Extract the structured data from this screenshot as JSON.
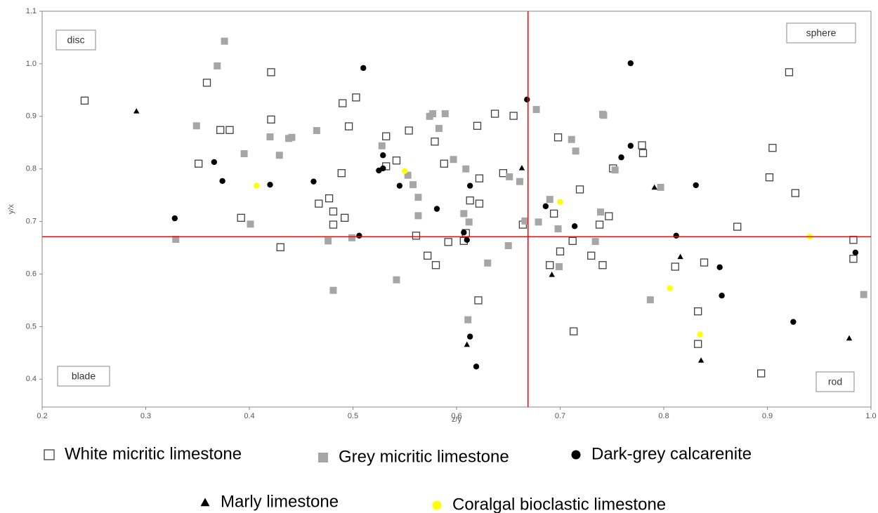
{
  "chart_data": {
    "type": "scatter",
    "x_label": "z/y",
    "y_label": "y/x",
    "xlim": [
      0.2,
      1.0
    ],
    "ylim": [
      0.347,
      1.1
    ],
    "xticks": [
      0.2,
      0.3,
      0.4,
      0.5,
      0.6,
      0.7,
      0.8,
      0.9,
      {
        "value": 1,
        "label": "1.0"
      }
    ],
    "yticks": [
      0.4,
      0.5,
      0.6,
      0.7,
      0.8,
      0.9,
      {
        "value": 1,
        "label": "1.0"
      },
      1.1
    ],
    "grid": false,
    "reference_lines": {
      "x": 0.669,
      "y": 0.671,
      "color": "#ff0000"
    },
    "quadrant_labels": [
      "disc",
      "sphere",
      "blade",
      "rod"
    ],
    "series": [
      {
        "name": "White micritic limestone",
        "color": "#404040",
        "marker": "square-open",
        "x": [
          0.241,
          0.359,
          0.351,
          0.372,
          0.381,
          0.421,
          0.421,
          0.392,
          0.43,
          0.467,
          0.477,
          0.481,
          0.481,
          0.489,
          0.49,
          0.496,
          0.492,
          0.503,
          0.532,
          0.532,
          0.542,
          0.554,
          0.561,
          0.572,
          0.579,
          0.58,
          0.588,
          0.592,
          0.607,
          0.609,
          0.613,
          0.622,
          0.622,
          0.621,
          0.62,
          0.637,
          0.645,
          0.655,
          0.664,
          0.69,
          0.698,
          0.694,
          0.7,
          0.713,
          0.719,
          0.73,
          0.738,
          0.741,
          0.747,
          0.751,
          0.779,
          0.78,
          0.811,
          0.833,
          0.833,
          0.839,
          0.871,
          0.894,
          0.902,
          0.905,
          0.921,
          0.927,
          0.983,
          0.983,
          0.712
        ],
        "y": [
          0.93,
          0.964,
          0.81,
          0.874,
          0.874,
          0.984,
          0.894,
          0.707,
          0.651,
          0.734,
          0.744,
          0.719,
          0.694,
          0.792,
          0.925,
          0.881,
          0.707,
          0.936,
          0.862,
          0.805,
          0.816,
          0.873,
          0.673,
          0.635,
          0.852,
          0.617,
          0.81,
          0.661,
          0.663,
          0.678,
          0.74,
          0.782,
          0.734,
          0.55,
          0.882,
          0.905,
          0.792,
          0.901,
          0.694,
          0.617,
          0.86,
          0.715,
          0.643,
          0.491,
          0.761,
          0.635,
          0.694,
          0.617,
          0.71,
          0.801,
          0.845,
          0.83,
          0.614,
          0.529,
          0.467,
          0.622,
          0.69,
          0.411,
          0.784,
          0.84,
          0.984,
          0.754,
          0.665,
          0.629,
          0.663
        ]
      },
      {
        "name": "Grey micritic limestone",
        "color": "#a6a6a6",
        "marker": "square",
        "x": [
          0.329,
          0.349,
          0.369,
          0.376,
          0.395,
          0.401,
          0.42,
          0.429,
          0.438,
          0.441,
          0.465,
          0.476,
          0.481,
          0.499,
          0.528,
          0.542,
          0.558,
          0.563,
          0.563,
          0.574,
          0.577,
          0.583,
          0.589,
          0.597,
          0.607,
          0.609,
          0.612,
          0.63,
          0.65,
          0.651,
          0.661,
          0.666,
          0.677,
          0.679,
          0.69,
          0.699,
          0.698,
          0.711,
          0.715,
          0.734,
          0.739,
          0.741,
          0.742,
          0.753,
          0.787,
          0.797,
          0.993,
          0.611,
          0.553
        ],
        "y": [
          0.666,
          0.882,
          0.996,
          1.043,
          0.829,
          0.695,
          0.861,
          0.826,
          0.858,
          0.86,
          0.873,
          0.663,
          0.569,
          0.669,
          0.844,
          0.589,
          0.77,
          0.711,
          0.746,
          0.9,
          0.905,
          0.877,
          0.905,
          0.818,
          0.715,
          0.8,
          0.699,
          0.621,
          0.654,
          0.785,
          0.776,
          0.701,
          0.913,
          0.699,
          0.742,
          0.614,
          0.686,
          0.856,
          0.834,
          0.662,
          0.718,
          0.904,
          0.902,
          0.798,
          0.551,
          0.765,
          0.561,
          0.513,
          0.788
        ]
      },
      {
        "name": "Dark-grey calcarenite",
        "color": "#000000",
        "marker": "circle",
        "x": [
          0.328,
          0.366,
          0.374,
          0.42,
          0.462,
          0.506,
          0.51,
          0.525,
          0.529,
          0.529,
          0.545,
          0.581,
          0.607,
          0.61,
          0.613,
          0.613,
          0.619,
          0.668,
          0.686,
          0.714,
          0.759,
          0.768,
          0.768,
          0.812,
          0.831,
          0.854,
          0.856,
          0.925,
          0.985
        ],
        "y": [
          0.706,
          0.813,
          0.777,
          0.77,
          0.776,
          0.673,
          0.992,
          0.797,
          0.826,
          0.801,
          0.768,
          0.724,
          0.679,
          0.665,
          0.768,
          0.481,
          0.424,
          0.932,
          0.729,
          0.691,
          0.822,
          0.844,
          1.001,
          0.673,
          0.769,
          0.613,
          0.559,
          0.509,
          0.641
        ]
      },
      {
        "name": "Marly limestone",
        "color": "#000000",
        "marker": "triangle",
        "x": [
          0.291,
          0.61,
          0.663,
          0.692,
          0.791,
          0.816,
          0.836,
          0.979
        ],
        "y": [
          0.91,
          0.466,
          0.802,
          0.599,
          0.765,
          0.633,
          0.436,
          0.478
        ]
      },
      {
        "name": "Coralgal bioclastic limestone",
        "color": "#ffff00",
        "marker": "circle",
        "x": [
          0.407,
          0.55,
          0.7,
          0.806,
          0.835,
          0.941
        ],
        "y": [
          0.768,
          0.796,
          0.737,
          0.573,
          0.485,
          0.671
        ]
      }
    ]
  }
}
